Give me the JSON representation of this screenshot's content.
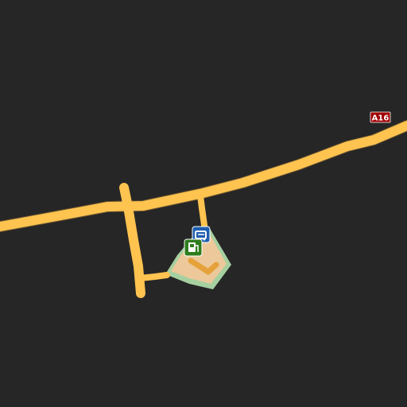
{
  "map": {
    "background_color": "#262626",
    "road_color": "#ffc350",
    "service_area_color": "#ecc89a",
    "service_area_border_color": "#a6d0a0",
    "route_shield": {
      "label": "A16",
      "color": "#a00000"
    },
    "pois": [
      {
        "name": "parking-icon",
        "color": "#1f5fb0"
      },
      {
        "name": "fuel-station-icon",
        "color": "#2e7d1e"
      }
    ]
  }
}
